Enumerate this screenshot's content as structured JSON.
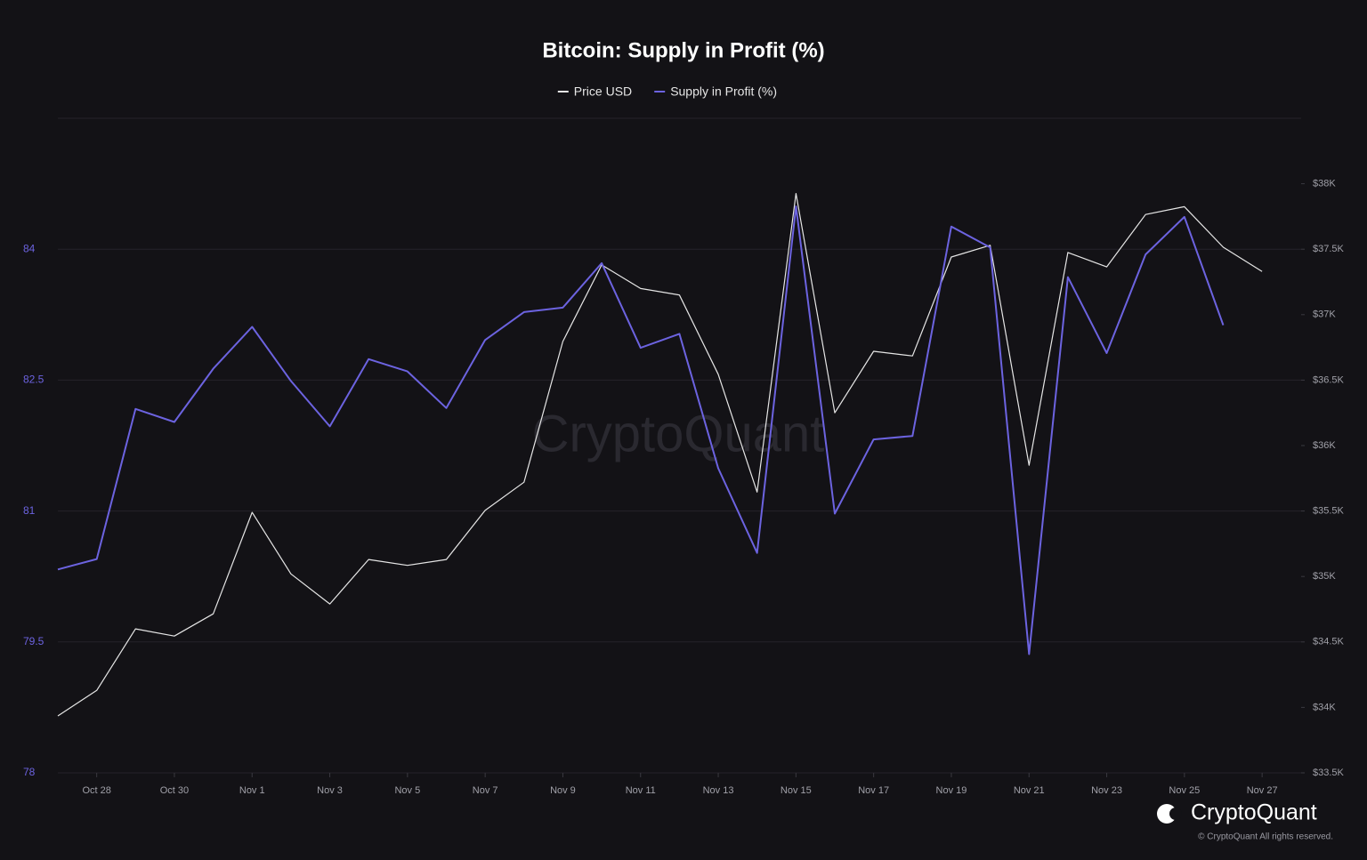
{
  "chart_data": {
    "type": "line",
    "title": "Bitcoin: Supply in Profit (%)",
    "categories": [
      null,
      "Oct 28",
      null,
      "Oct 30",
      null,
      "Nov 1",
      null,
      "Nov 3",
      null,
      "Nov 5",
      null,
      "Nov 7",
      null,
      "Nov 9",
      null,
      "Nov 11",
      null,
      "Nov 13",
      null,
      "Nov 15",
      null,
      "Nov 17",
      null,
      "Nov 19",
      null,
      "Nov 21",
      null,
      "Nov 23",
      null,
      "Nov 25",
      null,
      "Nov 27"
    ],
    "series": [
      {
        "name": "Price USD",
        "color": "#e6e6e6",
        "axis": "y2",
        "values": [
          33935,
          34130,
          34600,
          34545,
          34715,
          35490,
          35020,
          34790,
          35130,
          35085,
          35130,
          35505,
          35720,
          36795,
          37380,
          37200,
          37150,
          36545,
          35645,
          37925,
          36250,
          36720,
          36685,
          37440,
          37530,
          35850,
          37475,
          37365,
          37765,
          37825,
          37515,
          37330
        ]
      },
      {
        "name": "Supply in Profit (%)",
        "color": "#6c63e0",
        "values": [
          80.33,
          80.45,
          82.17,
          82.02,
          82.63,
          83.11,
          82.49,
          81.97,
          82.74,
          82.6,
          82.18,
          82.96,
          83.28,
          83.33,
          83.84,
          82.87,
          83.03,
          81.49,
          80.52,
          84.49,
          80.97,
          81.82,
          81.86,
          84.26,
          84.02,
          79.36,
          83.68,
          82.81,
          83.94,
          84.37,
          83.13,
          null
        ]
      }
    ],
    "ylim": [
      78,
      85.5
    ],
    "yticks": [
      78,
      79.5,
      81,
      82.5,
      84
    ],
    "y2lim": [
      33500,
      38500
    ],
    "y2ticks": [
      {
        "value": 33500,
        "label": "$33.5K"
      },
      {
        "value": 34000,
        "label": "$34K"
      },
      {
        "value": 34500,
        "label": "$34.5K"
      },
      {
        "value": 35000,
        "label": "$35K"
      },
      {
        "value": 35500,
        "label": "$35.5K"
      },
      {
        "value": 36000,
        "label": "$36K"
      },
      {
        "value": 36500,
        "label": "$36.5K"
      },
      {
        "value": 37000,
        "label": "$37K"
      },
      {
        "value": 37500,
        "label": "$37.5K"
      },
      {
        "value": 38000,
        "label": "$38K"
      }
    ],
    "grid": true,
    "legend": "top",
    "watermark": "CryptoQuant",
    "brand": "CryptoQuant",
    "copyright": "© CryptoQuant All rights reserved."
  }
}
